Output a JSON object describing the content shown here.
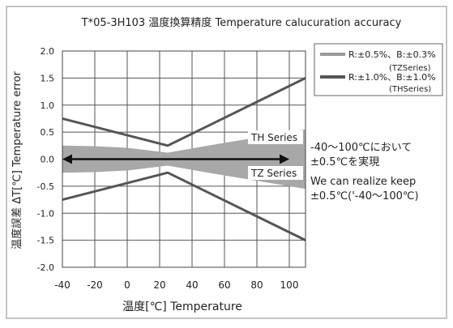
{
  "chart_data": {
    "type": "line",
    "title": "T*05-3H103 温度換算精度 Temperature calucuration accuracy",
    "xlabel": "温度[℃]  Temperature",
    "ylabel": "温度誤差 ΔT[℃] Temperature error",
    "xlim": [
      -40,
      110
    ],
    "ylim": [
      -2.0,
      2.0
    ],
    "x_ticks": [
      "-40",
      "-20",
      "0",
      "20",
      "40",
      "60",
      "80",
      "100"
    ],
    "x_tick_values": [
      -40,
      -20,
      0,
      20,
      40,
      60,
      80,
      100
    ],
    "y_ticks": [
      "2.0",
      "1.5",
      "1.0",
      "0.5",
      "0.0",
      "-0.5",
      "-1.0",
      "-1.5",
      "-2.0"
    ],
    "y_tick_values": [
      2.0,
      1.5,
      1.0,
      0.5,
      0.0,
      -0.5,
      -1.0,
      -1.5,
      -2.0
    ],
    "grid": true,
    "legend_position": "right",
    "series": [
      {
        "name": "R:±1.0%、B:±1.0%(THSeries)",
        "kind": "line",
        "color": "#555555",
        "x": [
          -40,
          25,
          110
        ],
        "y": [
          0.75,
          0.25,
          1.5
        ]
      },
      {
        "name": "R:±1.0%、B:±1.0%(THSeries)",
        "kind": "line",
        "color": "#555555",
        "x": [
          -40,
          25,
          110
        ],
        "y": [
          -0.75,
          -0.25,
          -1.5
        ]
      },
      {
        "name": "R:±0.5%、B:±0.3%(TZSeries)",
        "kind": "band",
        "color": "#a8a8a8",
        "x": [
          -40,
          -20,
          0,
          25,
          50,
          80,
          110
        ],
        "upper": [
          0.25,
          0.24,
          0.21,
          0.12,
          0.25,
          0.4,
          0.55
        ],
        "lower": [
          -0.25,
          -0.24,
          -0.21,
          -0.12,
          -0.25,
          -0.4,
          -0.55
        ]
      }
    ],
    "legend": [
      {
        "label_line1": "R:±0.5%、B:±0.3%",
        "label_line2": "(TZSeries)",
        "color": "#999999"
      },
      {
        "label_line1": "R:±1.0%、B:±1.0%",
        "label_line2": "(THSeries)",
        "color": "#555555"
      }
    ],
    "annotations": {
      "th_series": "TH Series",
      "tz_series": "TZ Series",
      "note_jp_1": "-40～100℃において",
      "note_jp_2": "±0.5℃を実現",
      "note_en_1": "We can realize keep",
      "note_en_2": "±0.5℃('-40～100℃)"
    },
    "range_arrow": {
      "from": -40,
      "to": 100,
      "y": 0.0
    }
  }
}
